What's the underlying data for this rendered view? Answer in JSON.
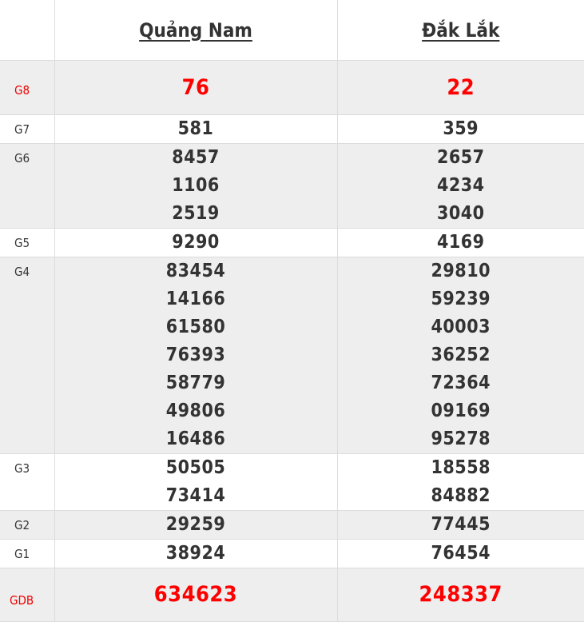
{
  "header": {
    "provinces": [
      "Quảng Nam",
      "Đắk Lắk"
    ]
  },
  "colors": {
    "highlight": "#ff0000",
    "text": "#333333",
    "stripe": "#eeeeee"
  },
  "rows": [
    {
      "label": "G8",
      "highlight": true,
      "values": [
        [
          "76"
        ],
        [
          "22"
        ]
      ]
    },
    {
      "label": "G7",
      "values": [
        [
          "581"
        ],
        [
          "359"
        ]
      ]
    },
    {
      "label": "G6",
      "values": [
        [
          "8457",
          "1106",
          "2519"
        ],
        [
          "2657",
          "4234",
          "3040"
        ]
      ]
    },
    {
      "label": "G5",
      "values": [
        [
          "9290"
        ],
        [
          "4169"
        ]
      ]
    },
    {
      "label": "G4",
      "values": [
        [
          "83454",
          "14166",
          "61580",
          "76393",
          "58779",
          "49806",
          "16486"
        ],
        [
          "29810",
          "59239",
          "40003",
          "36252",
          "72364",
          "09169",
          "95278"
        ]
      ]
    },
    {
      "label": "G3",
      "values": [
        [
          "50505",
          "73414"
        ],
        [
          "18558",
          "84882"
        ]
      ]
    },
    {
      "label": "G2",
      "values": [
        [
          "29259"
        ],
        [
          "77445"
        ]
      ]
    },
    {
      "label": "G1",
      "values": [
        [
          "38924"
        ],
        [
          "76454"
        ]
      ]
    },
    {
      "label": "GDB",
      "highlight": true,
      "values": [
        [
          "634623"
        ],
        [
          "248337"
        ]
      ]
    }
  ]
}
